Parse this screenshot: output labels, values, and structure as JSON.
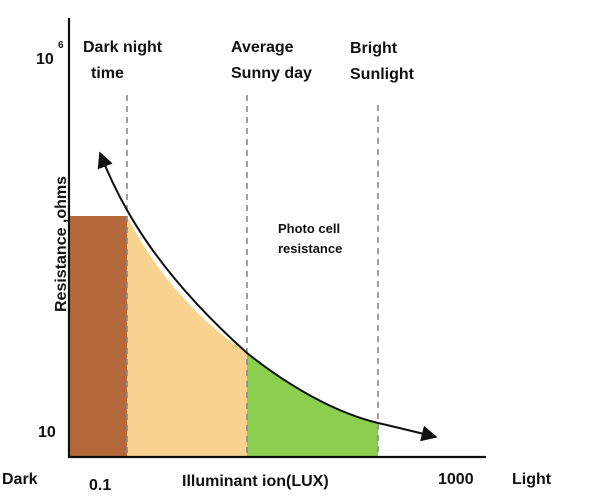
{
  "chart_data": {
    "type": "area",
    "xlabel": "Illuminant ion(LUX)",
    "ylabel": "Resistance ,ohms",
    "x_tick_labels": [
      "0.1",
      "1000"
    ],
    "x_end_labels": {
      "left": "Dark",
      "right": "Light"
    },
    "y_tick_labels": {
      "top_base": "10",
      "top_exp": "6",
      "bottom": "10"
    },
    "markers": [
      {
        "line1": "Dark night",
        "line2": "time"
      },
      {
        "line1": "Average",
        "line2": "Sunny day"
      },
      {
        "line1": "Bright",
        "line2": "Sunlight"
      }
    ],
    "curve_label": {
      "line1": "Photo cell",
      "line2": "resistance"
    },
    "regions": [
      {
        "name": "dark",
        "color": "#b5693a"
      },
      {
        "name": "dim",
        "color": "#f8d390"
      },
      {
        "name": "bright",
        "color": "#8ccf50"
      }
    ],
    "curve_color": "#111111",
    "guide_color": "#888888"
  }
}
